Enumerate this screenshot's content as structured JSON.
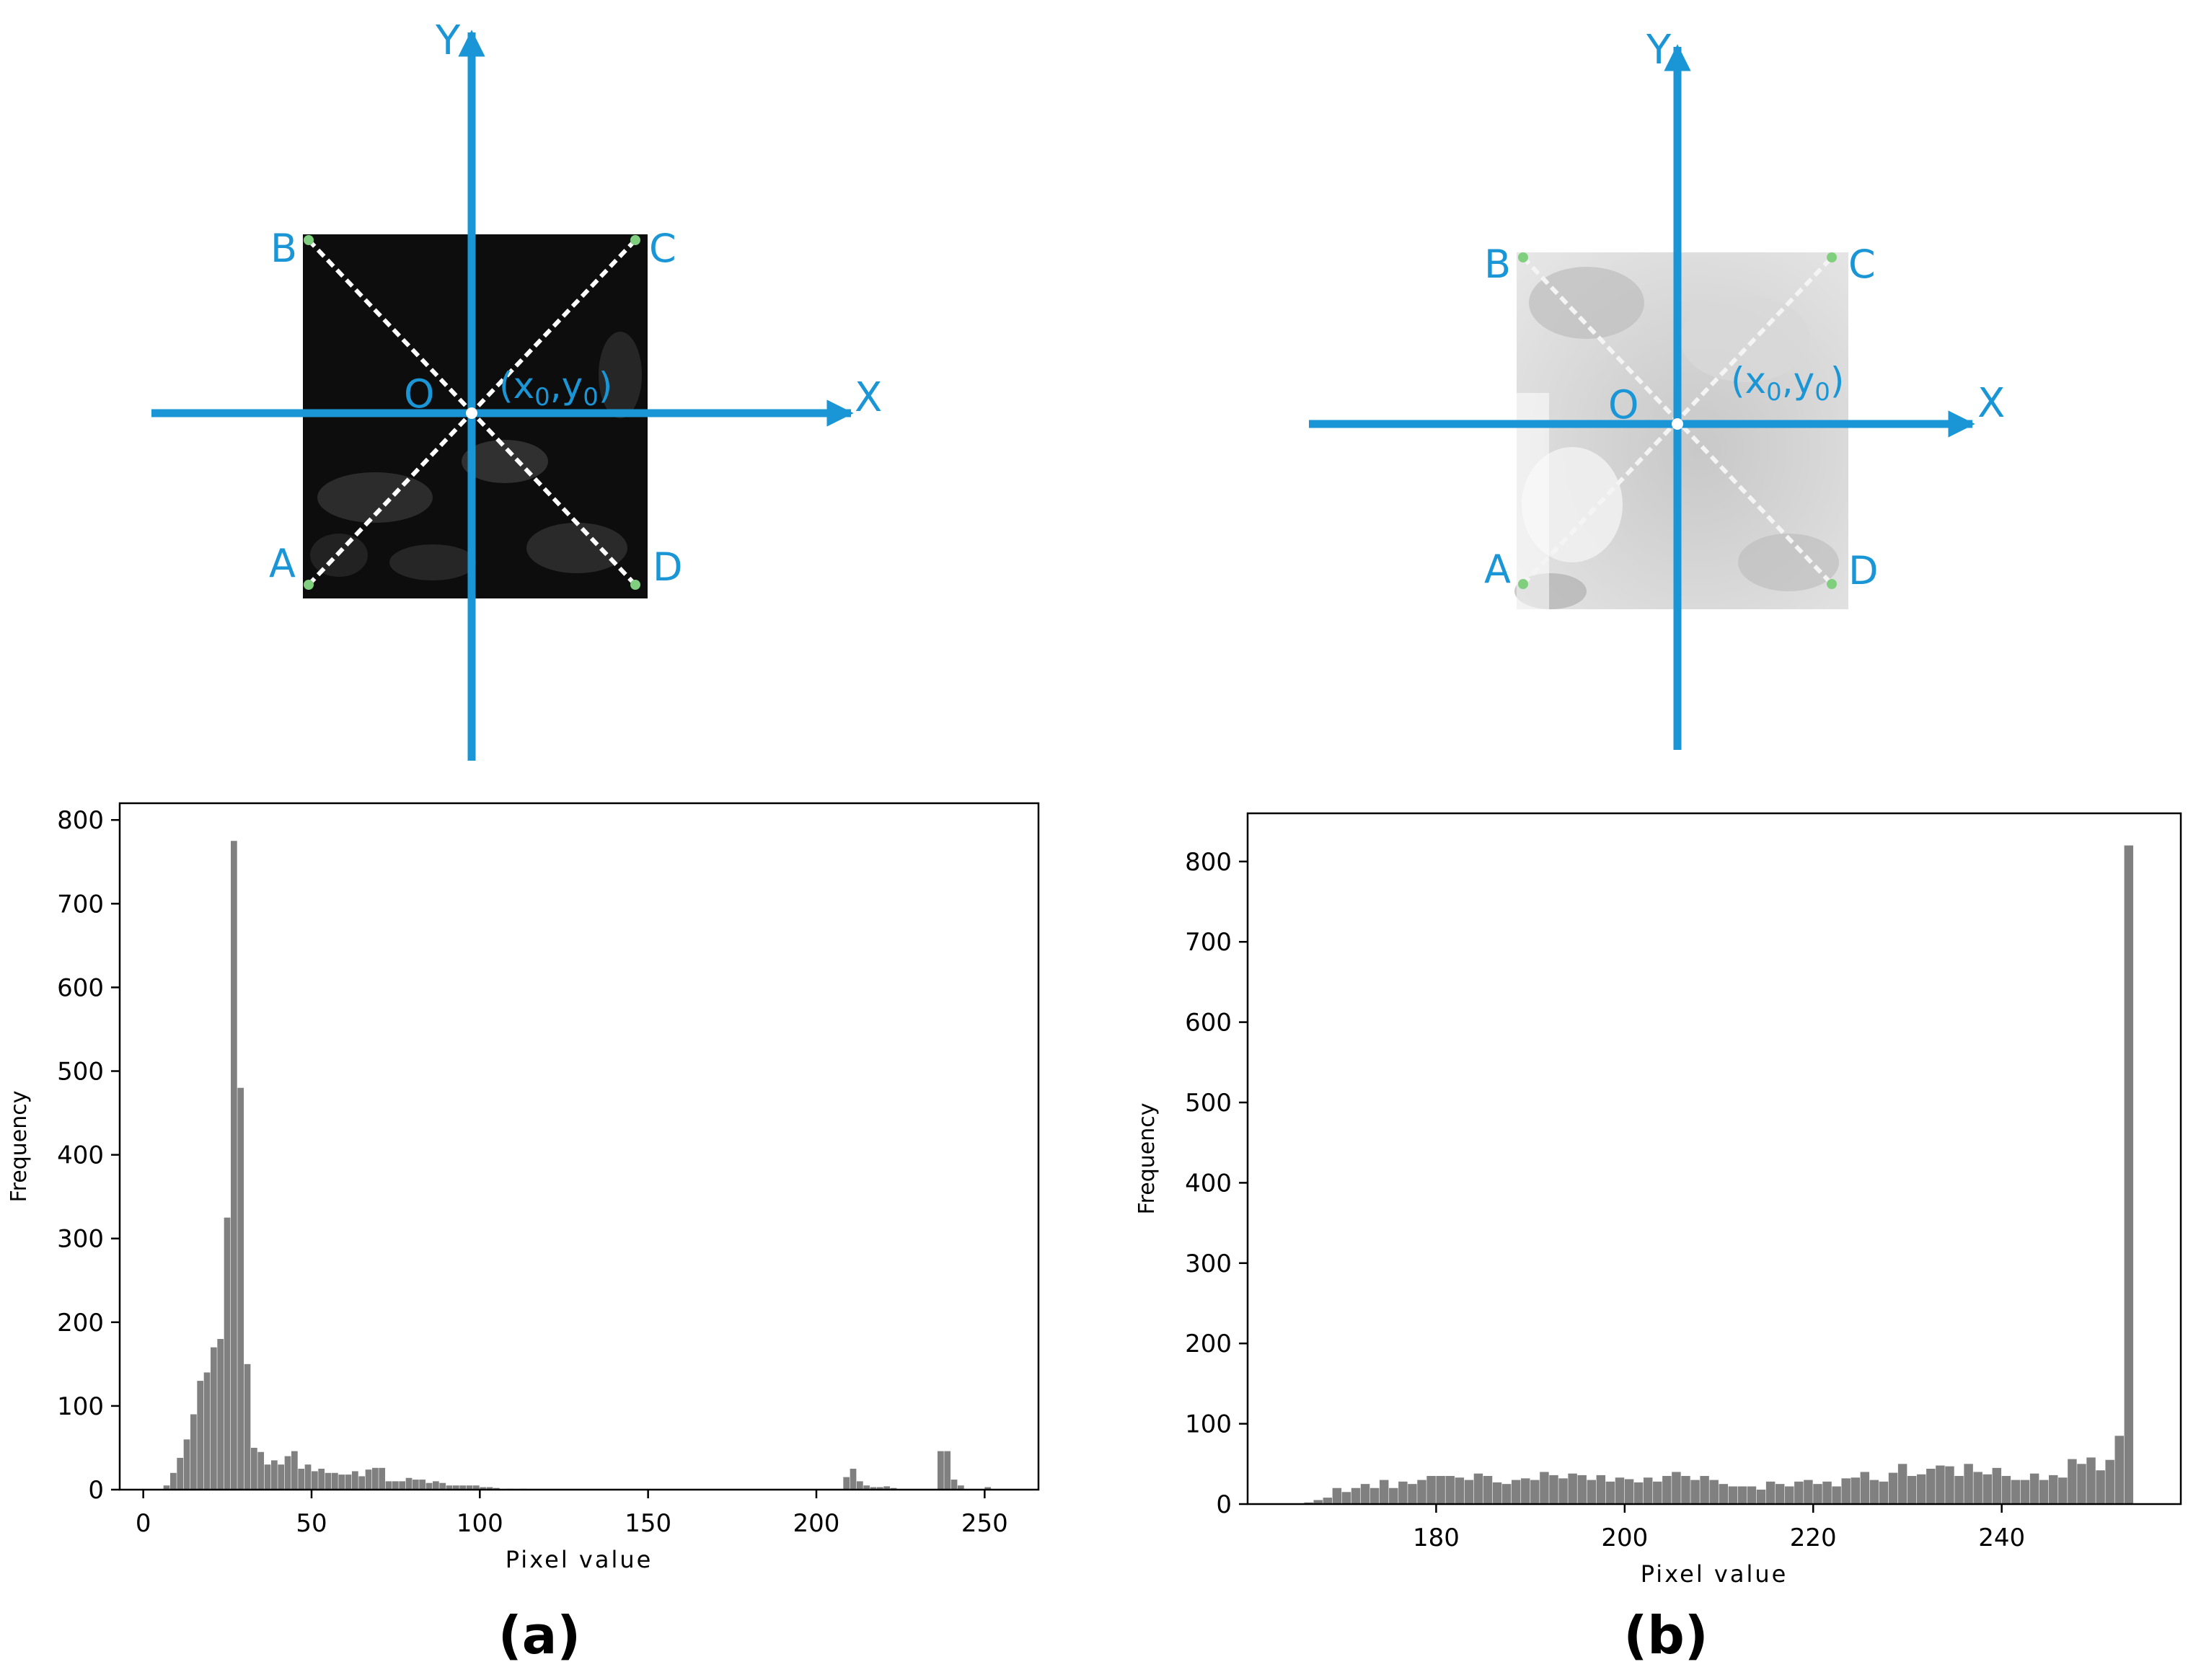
{
  "colors": {
    "axis_blue": "#1a96d6",
    "bar": "#808080",
    "point_green": "#7fcf7f",
    "frame": "#000000"
  },
  "panels": [
    {
      "caption": "(a)",
      "diagram": {
        "x_axis": "X",
        "y_axis": "Y",
        "points": {
          "A": "A",
          "B": "B",
          "C": "C",
          "D": "D",
          "O": "O"
        },
        "center_label": {
          "open": "(x",
          "sub1": "0",
          "mid": ",y",
          "sub2": "0",
          "close": ")"
        },
        "patch_tone": "dark"
      }
    },
    {
      "caption": "(b)",
      "diagram": {
        "x_axis": "X",
        "y_axis": "Y",
        "points": {
          "A": "A",
          "B": "B",
          "C": "C",
          "D": "D",
          "O": "O"
        },
        "center_label": {
          "open": "(x",
          "sub1": "0",
          "mid": ",y",
          "sub2": "0",
          "close": ")"
        },
        "patch_tone": "light"
      }
    }
  ],
  "chart_data": [
    {
      "type": "bar",
      "xlabel": "Pixel value",
      "ylabel": "Frequency",
      "xlim": [
        -7,
        266
      ],
      "ylim": [
        0,
        820
      ],
      "xticks": [
        0,
        50,
        100,
        150,
        200,
        250
      ],
      "yticks": [
        0,
        100,
        200,
        300,
        400,
        500,
        600,
        700,
        800
      ],
      "bin_width": 2,
      "bins": [
        [
          6,
          5
        ],
        [
          8,
          20
        ],
        [
          10,
          38
        ],
        [
          12,
          60
        ],
        [
          14,
          90
        ],
        [
          16,
          130
        ],
        [
          18,
          140
        ],
        [
          20,
          170
        ],
        [
          22,
          180
        ],
        [
          24,
          325
        ],
        [
          26,
          775
        ],
        [
          28,
          480
        ],
        [
          30,
          150
        ],
        [
          32,
          50
        ],
        [
          34,
          45
        ],
        [
          36,
          30
        ],
        [
          38,
          35
        ],
        [
          40,
          30
        ],
        [
          42,
          40
        ],
        [
          44,
          46
        ],
        [
          46,
          25
        ],
        [
          48,
          30
        ],
        [
          50,
          22
        ],
        [
          52,
          25
        ],
        [
          54,
          20
        ],
        [
          56,
          20
        ],
        [
          58,
          18
        ],
        [
          60,
          18
        ],
        [
          62,
          22
        ],
        [
          64,
          16
        ],
        [
          66,
          24
        ],
        [
          68,
          26
        ],
        [
          70,
          26
        ],
        [
          72,
          10
        ],
        [
          74,
          10
        ],
        [
          76,
          10
        ],
        [
          78,
          14
        ],
        [
          80,
          12
        ],
        [
          82,
          12
        ],
        [
          84,
          8
        ],
        [
          86,
          10
        ],
        [
          88,
          8
        ],
        [
          90,
          5
        ],
        [
          92,
          5
        ],
        [
          94,
          5
        ],
        [
          96,
          5
        ],
        [
          98,
          5
        ],
        [
          100,
          3
        ],
        [
          102,
          3
        ],
        [
          104,
          2
        ],
        [
          108,
          1
        ],
        [
          112,
          1
        ],
        [
          208,
          15
        ],
        [
          210,
          25
        ],
        [
          212,
          10
        ],
        [
          214,
          5
        ],
        [
          216,
          3
        ],
        [
          218,
          3
        ],
        [
          220,
          4
        ],
        [
          222,
          2
        ],
        [
          236,
          46
        ],
        [
          238,
          46
        ],
        [
          240,
          12
        ],
        [
          242,
          5
        ],
        [
          250,
          3
        ]
      ]
    },
    {
      "type": "bar",
      "xlabel": "Pixel value",
      "ylabel": "Frequency",
      "xlim": [
        160,
        259
      ],
      "ylim": [
        0,
        860
      ],
      "xticks": [
        180,
        200,
        220,
        240
      ],
      "yticks": [
        0,
        100,
        200,
        300,
        400,
        500,
        600,
        700,
        800
      ],
      "bin_width": 1,
      "bins": [
        [
          166,
          2
        ],
        [
          167,
          5
        ],
        [
          168,
          8
        ],
        [
          169,
          20
        ],
        [
          170,
          15
        ],
        [
          171,
          20
        ],
        [
          172,
          25
        ],
        [
          173,
          20
        ],
        [
          174,
          30
        ],
        [
          175,
          20
        ],
        [
          176,
          28
        ],
        [
          177,
          25
        ],
        [
          178,
          30
        ],
        [
          179,
          35
        ],
        [
          180,
          35
        ],
        [
          181,
          35
        ],
        [
          182,
          33
        ],
        [
          183,
          30
        ],
        [
          184,
          38
        ],
        [
          185,
          35
        ],
        [
          186,
          27
        ],
        [
          187,
          25
        ],
        [
          188,
          30
        ],
        [
          189,
          32
        ],
        [
          190,
          30
        ],
        [
          191,
          40
        ],
        [
          192,
          36
        ],
        [
          193,
          32
        ],
        [
          194,
          38
        ],
        [
          195,
          36
        ],
        [
          196,
          30
        ],
        [
          197,
          36
        ],
        [
          198,
          28
        ],
        [
          199,
          33
        ],
        [
          200,
          31
        ],
        [
          201,
          27
        ],
        [
          202,
          33
        ],
        [
          203,
          28
        ],
        [
          204,
          35
        ],
        [
          205,
          40
        ],
        [
          206,
          35
        ],
        [
          207,
          30
        ],
        [
          208,
          35
        ],
        [
          209,
          30
        ],
        [
          210,
          25
        ],
        [
          211,
          22
        ],
        [
          212,
          22
        ],
        [
          213,
          22
        ],
        [
          214,
          18
        ],
        [
          215,
          28
        ],
        [
          216,
          25
        ],
        [
          217,
          22
        ],
        [
          218,
          28
        ],
        [
          219,
          30
        ],
        [
          220,
          25
        ],
        [
          221,
          28
        ],
        [
          222,
          22
        ],
        [
          223,
          32
        ],
        [
          224,
          33
        ],
        [
          225,
          40
        ],
        [
          226,
          30
        ],
        [
          227,
          28
        ],
        [
          228,
          39
        ],
        [
          229,
          50
        ],
        [
          230,
          35
        ],
        [
          231,
          37
        ],
        [
          232,
          44
        ],
        [
          233,
          48
        ],
        [
          234,
          47
        ],
        [
          235,
          35
        ],
        [
          236,
          50
        ],
        [
          237,
          40
        ],
        [
          238,
          37
        ],
        [
          239,
          45
        ],
        [
          240,
          35
        ],
        [
          241,
          30
        ],
        [
          242,
          30
        ],
        [
          243,
          38
        ],
        [
          244,
          30
        ],
        [
          245,
          36
        ],
        [
          246,
          33
        ],
        [
          247,
          56
        ],
        [
          248,
          50
        ],
        [
          249,
          58
        ],
        [
          250,
          42
        ],
        [
          251,
          55
        ],
        [
          252,
          85
        ],
        [
          253,
          820
        ]
      ]
    }
  ]
}
